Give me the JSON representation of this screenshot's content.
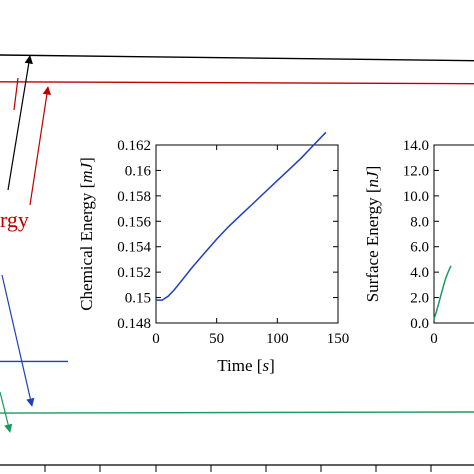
{
  "colors": {
    "black": "#000000",
    "red": "#c00000",
    "blue": "#1f3fbf",
    "green": "#1a9a5a"
  },
  "main_fragments": {
    "energy_label_fragment": "rgy"
  },
  "chart_data": [
    {
      "type": "line",
      "panel": "main",
      "title": "",
      "xlabel": "",
      "ylabel": "",
      "grid": false,
      "note": "Background plot is cropped; its axis labels and tick values are not visible.",
      "series": [
        {
          "color": "#000000",
          "x": [
            0,
            1
          ],
          "y": [
            1.0,
            0.985
          ]
        },
        {
          "color": "#c00000",
          "x": [
            0,
            1
          ],
          "y": [
            0.93,
            0.925
          ]
        },
        {
          "color": "#1f3fbf",
          "x": [
            0,
            1
          ],
          "y": [
            0.2,
            0.2
          ]
        },
        {
          "color": "#1a9a5a",
          "x": [
            0,
            1
          ],
          "y": [
            0.065,
            0.068
          ]
        }
      ]
    },
    {
      "type": "line",
      "panel": "inset-chemical",
      "title": "",
      "xlabel": "Time [s]",
      "xlabel_parts": [
        "Time [",
        "s",
        "]"
      ],
      "ylabel": "Chemical Energy [mJ]",
      "ylabel_parts": [
        "Chemical Energy [",
        "mJ",
        "]"
      ],
      "xlim": [
        0,
        150
      ],
      "ylim": [
        0.148,
        0.162
      ],
      "xticks": [
        0,
        50,
        100,
        150
      ],
      "xtick_labels": [
        "0",
        "50",
        "100",
        "150"
      ],
      "yticks": [
        0.148,
        0.15,
        0.152,
        0.154,
        0.156,
        0.158,
        0.16,
        0.162
      ],
      "ytick_labels": [
        "0.148",
        "0.15",
        "0.152",
        "0.154",
        "0.156",
        "0.158",
        "0.16",
        "0.162"
      ],
      "grid": false,
      "series": [
        {
          "color": "#1f3fbf",
          "x": [
            0,
            5,
            10,
            15,
            20,
            30,
            40,
            50,
            60,
            70,
            80,
            90,
            100,
            110,
            120,
            130,
            140
          ],
          "y": [
            0.1498,
            0.1498,
            0.1501,
            0.1506,
            0.1512,
            0.1524,
            0.1535,
            0.1546,
            0.1556,
            0.1565,
            0.1574,
            0.1583,
            0.1592,
            0.1601,
            0.161,
            0.162,
            0.163
          ]
        }
      ]
    },
    {
      "type": "line",
      "panel": "inset-surface",
      "title": "",
      "xlabel": "",
      "ylabel": "Surface Energy [nJ]",
      "ylabel_parts": [
        "Surface Energy [",
        "nJ",
        "]"
      ],
      "xlim": [
        0,
        150
      ],
      "ylim": [
        0.0,
        14.0
      ],
      "xticks": [
        0
      ],
      "xtick_labels": [
        "0"
      ],
      "yticks": [
        0,
        2,
        4,
        6,
        8,
        10,
        12,
        14
      ],
      "ytick_labels": [
        "0.0",
        "2.0",
        "4.0",
        "6.0",
        "8.0",
        "10.0",
        "12.0",
        "14.0"
      ],
      "grid": false,
      "series": [
        {
          "color": "#1a9a5a",
          "x": [
            0,
            2,
            4,
            6,
            8,
            10,
            12,
            14
          ],
          "y": [
            0.3,
            0.9,
            1.6,
            2.3,
            3.0,
            3.6,
            4.1,
            4.5
          ]
        }
      ]
    }
  ]
}
